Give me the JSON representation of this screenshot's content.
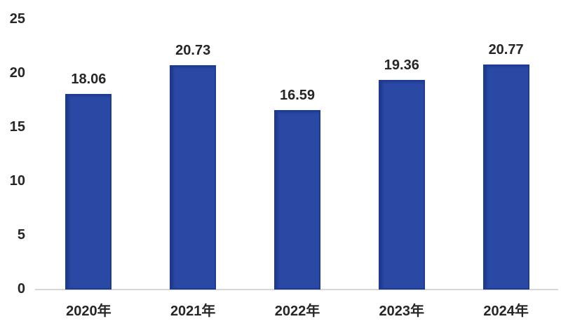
{
  "chart_data": {
    "type": "bar",
    "title": "",
    "xlabel": "",
    "ylabel": "",
    "categories": [
      "2020年",
      "2021年",
      "2022年",
      "2023年",
      "2024年"
    ],
    "values": [
      18.06,
      20.73,
      16.59,
      19.36,
      20.77
    ],
    "data_labels": [
      "18.06",
      "20.73",
      "16.59",
      "19.36",
      "20.77"
    ],
    "ylim": [
      0,
      25
    ],
    "yticks": [
      0,
      5,
      10,
      15,
      20,
      25
    ],
    "grid": false,
    "legend_position": "none",
    "bar_fill_color": "#2a49a4",
    "bar_border_color": "#1c3b92",
    "axis_line_color": "#d6d6d6",
    "text_color": "#262626",
    "background_color": "#ffffff"
  }
}
